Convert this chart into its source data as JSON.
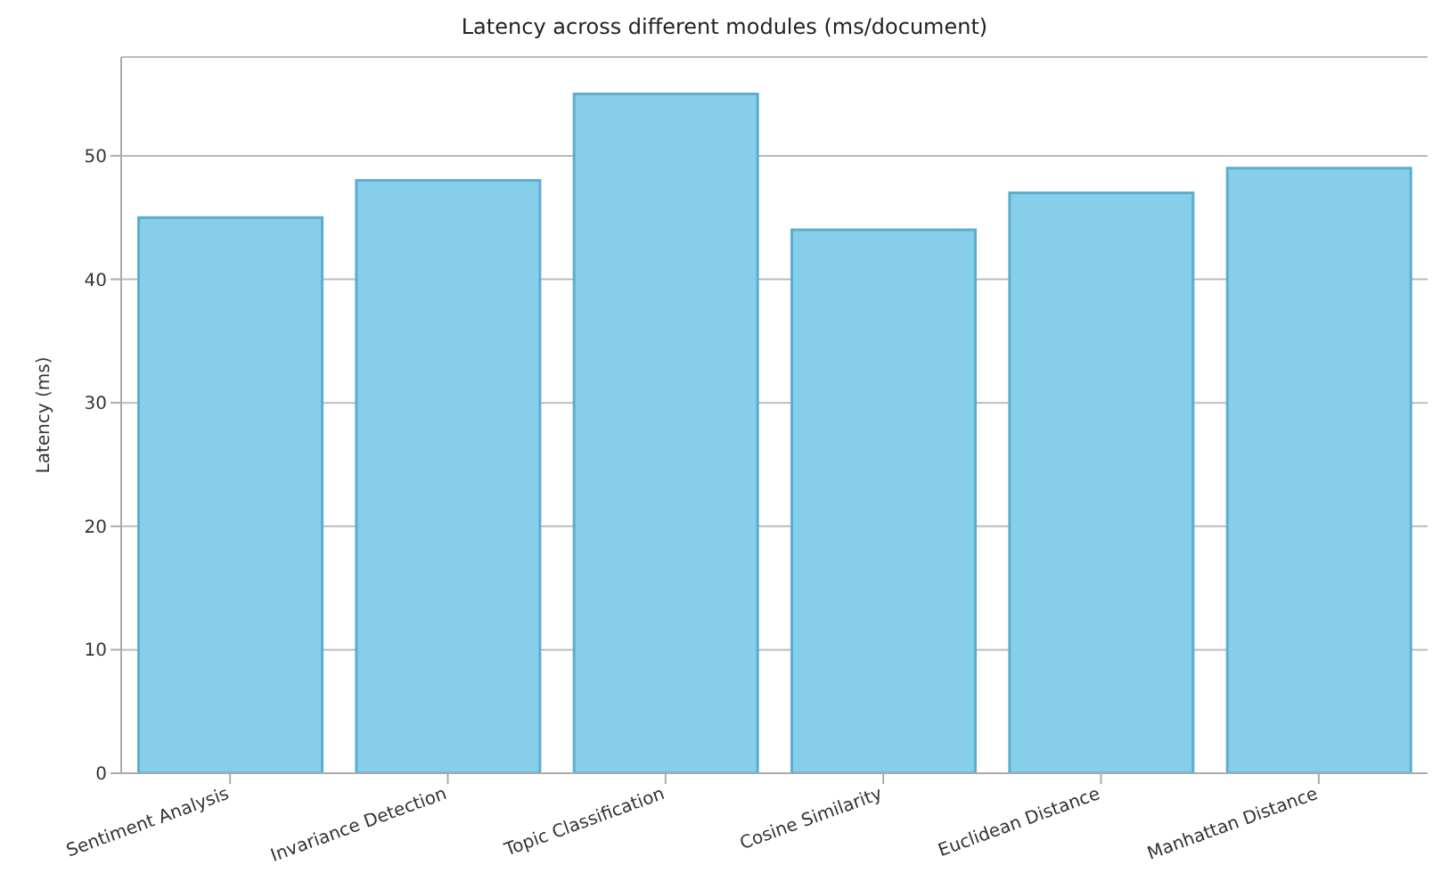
{
  "chart_data": {
    "type": "bar",
    "title": "Latency across different modules (ms/document)",
    "ylabel": "Latency (ms)",
    "categories": [
      "Sentiment Analysis",
      "Invariance Detection",
      "Topic Classification",
      "Cosine Similarity",
      "Euclidean Distance",
      "Manhattan Distance"
    ],
    "values": [
      45,
      48,
      55,
      44,
      47,
      49
    ],
    "color": "#87ceeb",
    "ylim": [
      0,
      58
    ],
    "yticks": [
      0,
      10,
      20,
      30,
      40,
      50
    ],
    "grid": "y"
  }
}
